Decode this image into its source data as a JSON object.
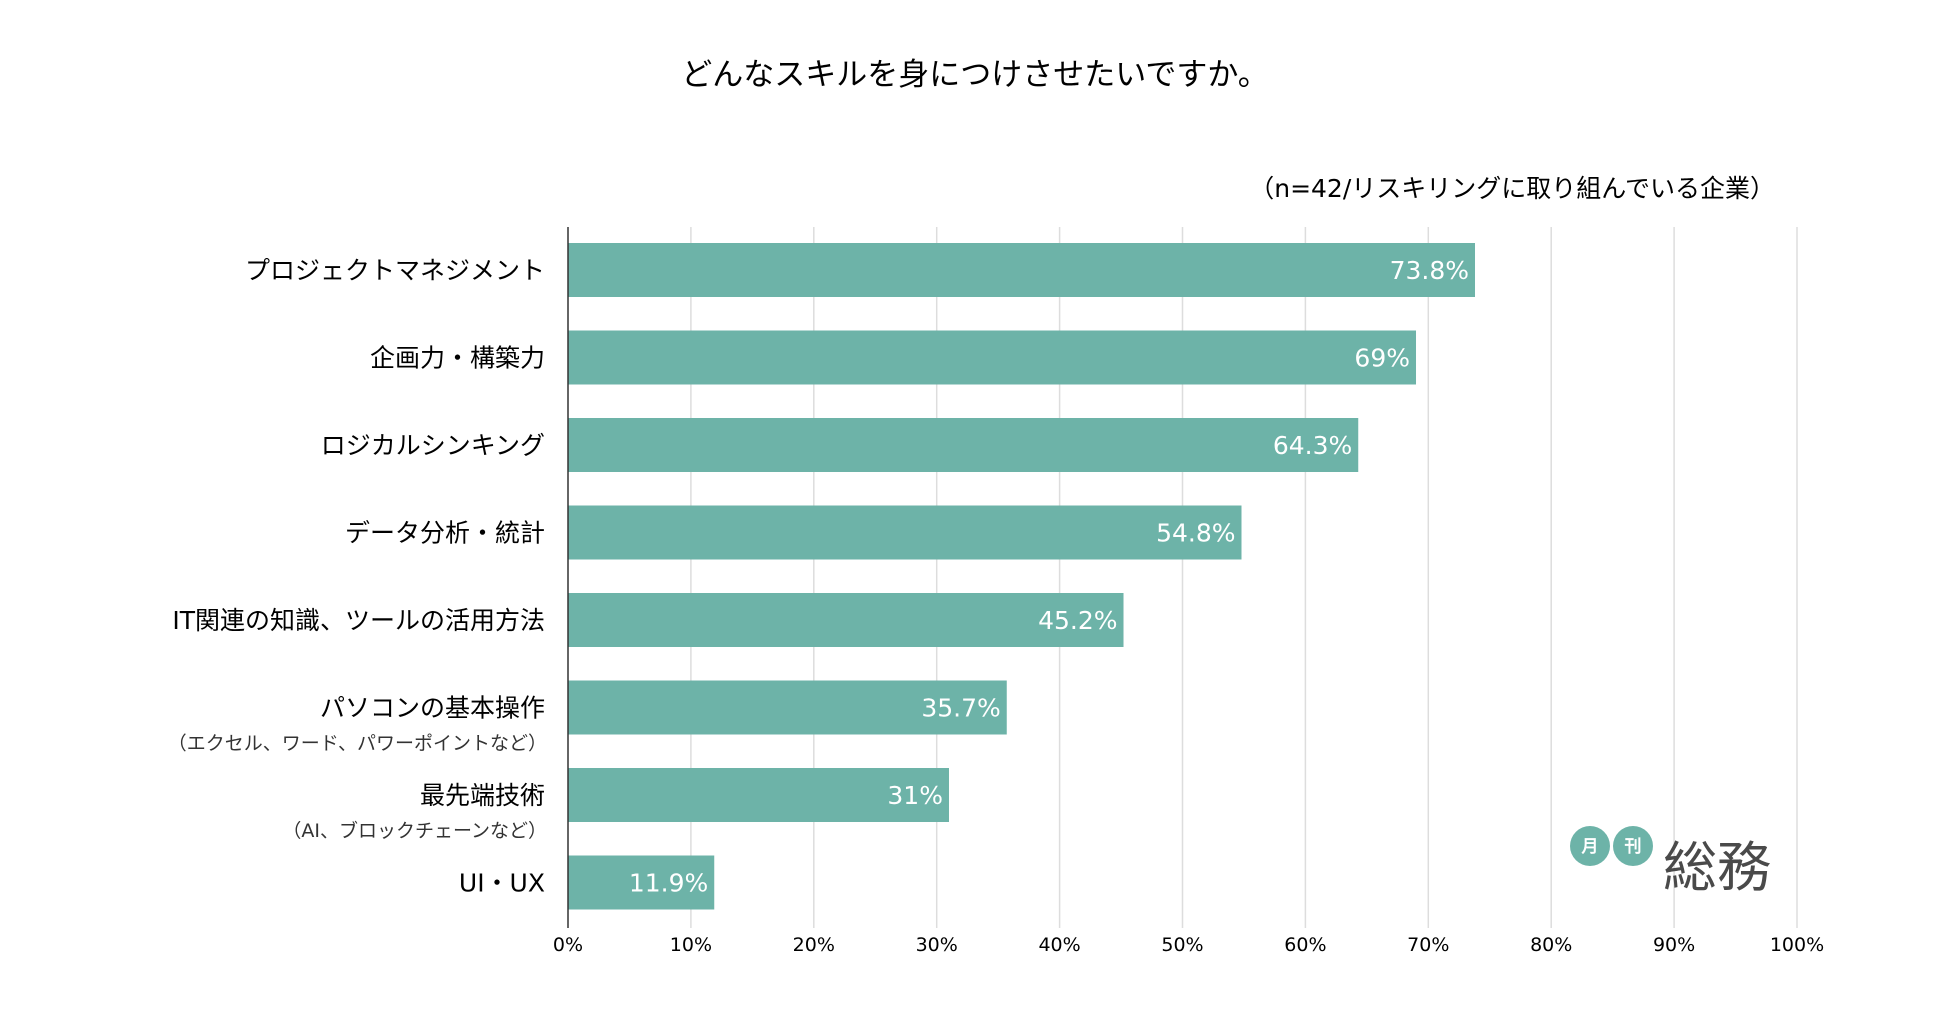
{
  "chart_data": {
    "type": "bar",
    "orientation": "horizontal",
    "title": "どんなスキルを身につけさせたいですか。",
    "subtitle": "（n=42/リスキリングに取り組んでいる企業）",
    "categories": [
      {
        "label": "プロジェクトマネジメント",
        "sub": ""
      },
      {
        "label": "企画力・構築力",
        "sub": ""
      },
      {
        "label": "ロジカルシンキング",
        "sub": ""
      },
      {
        "label": "データ分析・統計",
        "sub": ""
      },
      {
        "label": "IT関連の知識、ツールの活用方法",
        "sub": ""
      },
      {
        "label": "パソコンの基本操作",
        "sub": "（エクセル、ワード、パワーポイントなど）"
      },
      {
        "label": "最先端技術",
        "sub": "（AI、ブロックチェーンなど）"
      },
      {
        "label": "UI・UX",
        "sub": ""
      }
    ],
    "values": [
      73.8,
      69,
      64.3,
      54.8,
      45.2,
      35.7,
      31,
      11.9
    ],
    "value_labels": [
      "73.8%",
      "69%",
      "64.3%",
      "54.8%",
      "45.2%",
      "35.7%",
      "31%",
      "11.9%"
    ],
    "xlim": [
      0,
      100
    ],
    "xticks": [
      0,
      10,
      20,
      30,
      40,
      50,
      60,
      70,
      80,
      90,
      100
    ],
    "xtick_labels": [
      "0%",
      "10%",
      "20%",
      "30%",
      "40%",
      "50%",
      "60%",
      "70%",
      "80%",
      "90%",
      "100%"
    ],
    "grid": true,
    "bar_color": "#6db3a8",
    "grid_color": "#dddddd"
  },
  "logo": {
    "circle1": "月",
    "circle2": "刊",
    "text": "総務",
    "circle_color": "#6db3a8"
  }
}
